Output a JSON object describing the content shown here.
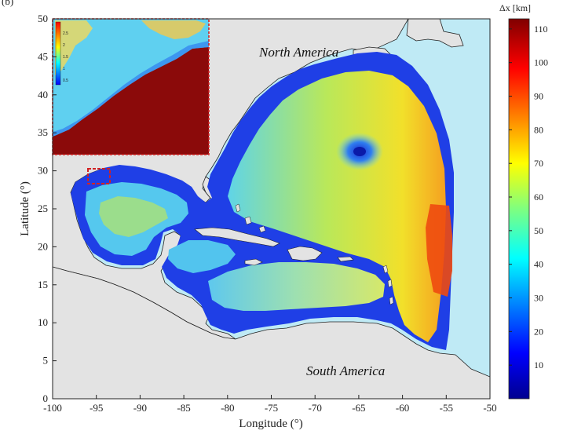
{
  "panel_label": "(b)",
  "xaxis": {
    "label": "Longitude (°)",
    "ticks": [
      -100,
      -95,
      -90,
      -85,
      -80,
      -75,
      -70,
      -65,
      -60,
      -55,
      -50
    ],
    "range": [
      -100,
      -50
    ]
  },
  "yaxis": {
    "label": "Latitude (°)",
    "ticks": [
      0,
      5,
      10,
      15,
      20,
      25,
      30,
      35,
      40,
      45,
      50
    ],
    "range": [
      0,
      50
    ]
  },
  "colorbar": {
    "title": "Δx [km]",
    "ticks": [
      10,
      20,
      30,
      40,
      50,
      60,
      70,
      80,
      90,
      100,
      110
    ],
    "range": [
      0,
      113
    ]
  },
  "inset": {
    "ticks": [
      "2.5",
      "2",
      "1.5",
      "1",
      "0.5"
    ]
  },
  "regions": {
    "north_america": "North America",
    "south_america": "South America"
  },
  "colors": {
    "ocean_outside_mesh": "#bfeaf5",
    "land": "#e3e3e3",
    "mesh_fine": "#1a2fe0",
    "mesh_mid": "#4fc8f0",
    "mesh_coarse": "#d8ea5a",
    "mesh_max": "#e83a10",
    "inset_box": "#d32222"
  }
}
